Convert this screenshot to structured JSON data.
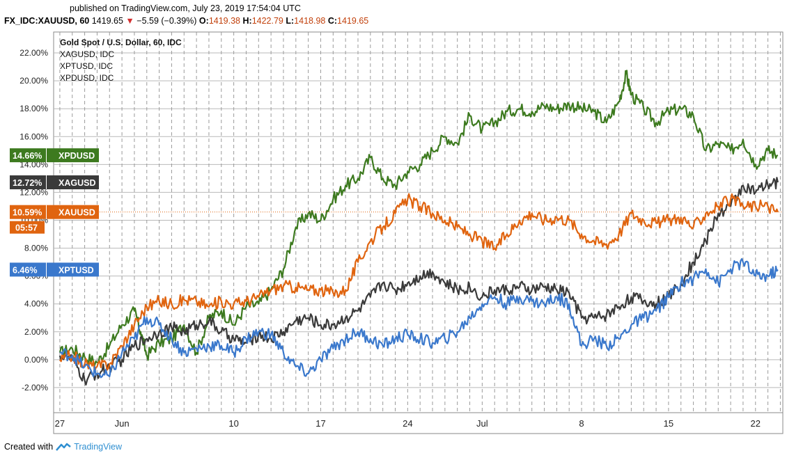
{
  "header": {
    "published": "published on TradingView.com, July 23, 2019 17:54:04 UTC",
    "symbol": "FX_IDC:XAUUSD, 60",
    "last": "1419.65",
    "change": "−5.59 (−0.39%)",
    "o_label": "O:",
    "o": "1419.38",
    "h_label": "H:",
    "h": "1422.79",
    "l_label": "L:",
    "l": "1418.98",
    "c_label": "C:",
    "c": "1419.65"
  },
  "footer": {
    "created_with": "Created with",
    "brand": "TradingView"
  },
  "colors": {
    "XAUUSD": "#e0640f",
    "XAGUSD": "#3a3a3a",
    "XPTUSD": "#3a78cc",
    "XPDUSD": "#3d7a1f"
  },
  "chart_data": {
    "type": "line",
    "title": "Gold Spot / U.S. Dollar, 60, IDC",
    "legend": [
      "XAGUSD, IDC",
      "XPTUSD, IDC",
      "XPDUSD, IDC"
    ],
    "y_ticks": [
      "22.00%",
      "20.00%",
      "18.00%",
      "16.00%",
      "14.00%",
      "12.00%",
      "10.00%",
      "8.00%",
      "6.00%",
      "4.00%",
      "2.00%",
      "0.00%",
      "-2.00%"
    ],
    "ylim": [
      -3.8,
      23.5
    ],
    "x_ticks": [
      {
        "label": "27",
        "t": 0
      },
      {
        "label": "Jun",
        "t": 5
      },
      {
        "label": "10",
        "t": 14
      },
      {
        "label": "17",
        "t": 21
      },
      {
        "label": "24",
        "t": 28
      },
      {
        "label": "Jul",
        "t": 34
      },
      {
        "label": "8",
        "t": 42
      },
      {
        "label": "15",
        "t": 49
      },
      {
        "label": "22",
        "t": 56
      }
    ],
    "xlim": [
      -0.5,
      58.2
    ],
    "grid": true,
    "series": [
      {
        "name": "XPDUSD",
        "badge": "14.66%",
        "points": [
          [
            0,
            0.5
          ],
          [
            1,
            0.8
          ],
          [
            2,
            0.2
          ],
          [
            3,
            -0.2
          ],
          [
            4,
            1.0
          ],
          [
            5,
            2.5
          ],
          [
            6,
            3.5
          ],
          [
            6.5,
            2.0
          ],
          [
            7,
            0.3
          ],
          [
            8,
            1.2
          ],
          [
            9,
            1.5
          ],
          [
            10,
            2.5
          ],
          [
            11,
            0.5
          ],
          [
            12,
            3.0
          ],
          [
            13,
            3.5
          ],
          [
            14,
            2.5
          ],
          [
            15,
            3.8
          ],
          [
            16,
            4.0
          ],
          [
            17,
            5.0
          ],
          [
            18,
            6.5
          ],
          [
            19,
            9.5
          ],
          [
            20,
            10.5
          ],
          [
            21,
            10.0
          ],
          [
            22,
            11.5
          ],
          [
            23,
            12.5
          ],
          [
            24,
            13.0
          ],
          [
            25,
            14.5
          ],
          [
            26,
            13.0
          ],
          [
            27,
            12.5
          ],
          [
            28,
            13.5
          ],
          [
            29,
            14.0
          ],
          [
            30,
            15.0
          ],
          [
            31,
            16.0
          ],
          [
            32,
            15.5
          ],
          [
            33,
            17.5
          ],
          [
            34,
            16.5
          ],
          [
            35,
            17.0
          ],
          [
            36,
            17.8
          ],
          [
            37,
            18.0
          ],
          [
            38,
            17.8
          ],
          [
            39,
            18.2
          ],
          [
            40,
            18.0
          ],
          [
            41,
            18.3
          ],
          [
            42,
            18.0
          ],
          [
            43,
            17.8
          ],
          [
            44,
            17.0
          ],
          [
            45,
            18.5
          ],
          [
            45.6,
            20.5
          ],
          [
            46,
            19.0
          ],
          [
            47,
            18.0
          ],
          [
            48,
            17.0
          ],
          [
            49,
            17.8
          ],
          [
            50,
            18.0
          ],
          [
            51,
            17.5
          ],
          [
            52,
            15.0
          ],
          [
            53,
            15.5
          ],
          [
            54,
            15.0
          ],
          [
            55,
            15.8
          ],
          [
            56,
            14.0
          ],
          [
            57,
            15.0
          ],
          [
            57.8,
            14.66
          ]
        ]
      },
      {
        "name": "XAGUSD",
        "badge": "12.72%",
        "points": [
          [
            0,
            0.3
          ],
          [
            1,
            0.0
          ],
          [
            2,
            -1.5
          ],
          [
            3,
            -1.0
          ],
          [
            4,
            -0.5
          ],
          [
            5,
            0.0
          ],
          [
            6,
            1.0
          ],
          [
            7,
            1.5
          ],
          [
            8,
            2.0
          ],
          [
            9,
            2.3
          ],
          [
            10,
            2.0
          ],
          [
            11,
            2.5
          ],
          [
            12,
            2.8
          ],
          [
            13,
            2.0
          ],
          [
            14,
            1.5
          ],
          [
            15,
            1.2
          ],
          [
            16,
            1.8
          ],
          [
            17,
            1.5
          ],
          [
            18,
            2.0
          ],
          [
            19,
            2.8
          ],
          [
            20,
            3.0
          ],
          [
            21,
            2.5
          ],
          [
            22,
            2.5
          ],
          [
            23,
            3.0
          ],
          [
            24,
            3.5
          ],
          [
            25,
            4.5
          ],
          [
            26,
            5.5
          ],
          [
            27,
            5.0
          ],
          [
            28,
            5.5
          ],
          [
            29,
            6.0
          ],
          [
            30,
            6.3
          ],
          [
            31,
            5.5
          ],
          [
            32,
            5.0
          ],
          [
            33,
            5.2
          ],
          [
            34,
            4.5
          ],
          [
            35,
            5.0
          ],
          [
            36,
            5.0
          ],
          [
            37,
            5.2
          ],
          [
            38,
            5.0
          ],
          [
            39,
            5.2
          ],
          [
            40,
            5.0
          ],
          [
            41,
            4.8
          ],
          [
            42,
            3.0
          ],
          [
            43,
            3.0
          ],
          [
            44,
            3.2
          ],
          [
            45,
            3.8
          ],
          [
            46,
            4.5
          ],
          [
            47,
            4.2
          ],
          [
            48,
            4.0
          ],
          [
            49,
            4.5
          ],
          [
            50,
            5.5
          ],
          [
            51,
            7.0
          ],
          [
            52,
            8.5
          ],
          [
            53,
            10.5
          ],
          [
            54,
            11.0
          ],
          [
            55,
            12.5
          ],
          [
            56,
            12.0
          ],
          [
            57,
            12.5
          ],
          [
            57.8,
            12.72
          ]
        ]
      },
      {
        "name": "XAUUSD",
        "badge": "10.59%",
        "points": [
          [
            0,
            0.0
          ],
          [
            1,
            0.3
          ],
          [
            2,
            -0.3
          ],
          [
            3,
            -0.5
          ],
          [
            4,
            -0.3
          ],
          [
            5,
            1.0
          ],
          [
            6,
            2.5
          ],
          [
            7,
            3.8
          ],
          [
            8,
            4.2
          ],
          [
            9,
            4.0
          ],
          [
            10,
            4.3
          ],
          [
            11,
            4.2
          ],
          [
            12,
            3.8
          ],
          [
            13,
            4.2
          ],
          [
            14,
            4.0
          ],
          [
            15,
            4.2
          ],
          [
            16,
            4.5
          ],
          [
            17,
            5.0
          ],
          [
            18,
            5.3
          ],
          [
            19,
            5.2
          ],
          [
            20,
            5.0
          ],
          [
            21,
            5.0
          ],
          [
            22,
            4.8
          ],
          [
            23,
            5.0
          ],
          [
            24,
            7.0
          ],
          [
            25,
            8.5
          ],
          [
            26,
            9.5
          ],
          [
            27,
            10.5
          ],
          [
            28,
            11.5
          ],
          [
            29,
            11.0
          ],
          [
            30,
            10.5
          ],
          [
            31,
            10.0
          ],
          [
            32,
            9.5
          ],
          [
            33,
            9.0
          ],
          [
            34,
            8.5
          ],
          [
            35,
            8.0
          ],
          [
            36,
            9.0
          ],
          [
            37,
            10.0
          ],
          [
            38,
            10.5
          ],
          [
            39,
            10.0
          ],
          [
            40,
            10.2
          ],
          [
            41,
            10.0
          ],
          [
            42,
            9.0
          ],
          [
            43,
            8.5
          ],
          [
            44,
            8.3
          ],
          [
            45,
            9.0
          ],
          [
            46,
            10.5
          ],
          [
            47,
            10.0
          ],
          [
            48,
            9.8
          ],
          [
            49,
            10.0
          ],
          [
            50,
            10.2
          ],
          [
            51,
            9.5
          ],
          [
            52,
            10.5
          ],
          [
            53,
            11.0
          ],
          [
            54,
            11.5
          ],
          [
            55,
            11.0
          ],
          [
            56,
            11.0
          ],
          [
            57,
            11.0
          ],
          [
            57.8,
            10.59
          ]
        ]
      },
      {
        "name": "XPTUSD",
        "badge": "6.46%",
        "points": [
          [
            0,
            0.5
          ],
          [
            1,
            0.3
          ],
          [
            2,
            -0.5
          ],
          [
            3,
            -1.0
          ],
          [
            4,
            -1.2
          ],
          [
            5,
            0.5
          ],
          [
            6,
            1.5
          ],
          [
            7,
            3.0
          ],
          [
            8,
            2.5
          ],
          [
            9,
            1.5
          ],
          [
            10,
            0.5
          ],
          [
            11,
            0.8
          ],
          [
            12,
            1.0
          ],
          [
            13,
            1.0
          ],
          [
            14,
            0.5
          ],
          [
            15,
            1.5
          ],
          [
            16,
            2.0
          ],
          [
            17,
            1.8
          ],
          [
            18,
            0.5
          ],
          [
            19,
            -0.5
          ],
          [
            20,
            -1.0
          ],
          [
            21,
            0.0
          ],
          [
            22,
            0.8
          ],
          [
            23,
            1.5
          ],
          [
            24,
            2.0
          ],
          [
            25,
            1.5
          ],
          [
            26,
            1.0
          ],
          [
            27,
            1.5
          ],
          [
            28,
            1.8
          ],
          [
            29,
            1.5
          ],
          [
            30,
            1.2
          ],
          [
            31,
            1.5
          ],
          [
            32,
            2.0
          ],
          [
            33,
            3.0
          ],
          [
            34,
            4.0
          ],
          [
            35,
            4.5
          ],
          [
            36,
            4.0
          ],
          [
            37,
            4.5
          ],
          [
            38,
            4.2
          ],
          [
            39,
            4.0
          ],
          [
            40,
            4.5
          ],
          [
            41,
            4.0
          ],
          [
            42,
            1.0
          ],
          [
            43,
            1.5
          ],
          [
            44,
            1.0
          ],
          [
            45,
            1.5
          ],
          [
            46,
            2.5
          ],
          [
            47,
            3.0
          ],
          [
            48,
            3.5
          ],
          [
            49,
            4.5
          ],
          [
            50,
            5.5
          ],
          [
            51,
            5.8
          ],
          [
            52,
            6.5
          ],
          [
            53,
            5.5
          ],
          [
            54,
            6.5
          ],
          [
            55,
            7.0
          ],
          [
            56,
            6.0
          ],
          [
            57,
            6.0
          ],
          [
            57.8,
            6.46
          ]
        ]
      }
    ],
    "price_line": {
      "value": 10.59,
      "badge": "10.59%",
      "label": "XAUUSD",
      "countdown": "05:57"
    }
  }
}
